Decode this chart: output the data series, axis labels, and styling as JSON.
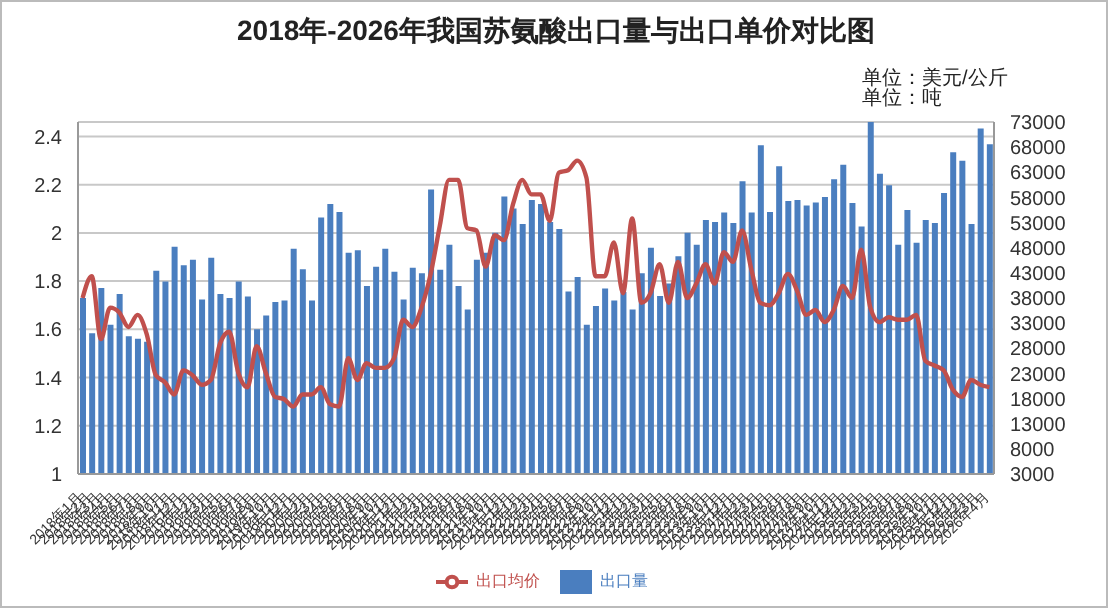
{
  "chart_data": {
    "type": "bar",
    "title": "2018年-2026年我国苏氨酸出口量与出口单价对比图",
    "annotations": [
      "单位：美元/公斤",
      "单位：吨"
    ],
    "categories": [
      "2018年1月",
      "2018年2月",
      "2018年3月",
      "2018年4月",
      "2018年5月",
      "2018年6月",
      "2018年7月",
      "2018年8月",
      "2018年9月",
      "2018年10月",
      "2018年11月",
      "2018年12月",
      "2019年1月",
      "2019年2月",
      "2019年3月",
      "2019年4月",
      "2019年5月",
      "2019年6月",
      "2019年7月",
      "2019年8月",
      "2019年9月",
      "2019年10月",
      "2019年11月",
      "2019年12月",
      "2020年1月",
      "2020年2月",
      "2020年3月",
      "2020年4月",
      "2020年5月",
      "2020年6月",
      "2020年7月",
      "2020年8月",
      "2020年9月",
      "2020年10月",
      "2020年11月",
      "2020年12月",
      "2021年1月",
      "2021年2月",
      "2021年3月",
      "2021年4月",
      "2021年5月",
      "2021年6月",
      "2021年7月",
      "2021年8月",
      "2021年9月",
      "2021年10月",
      "2021年11月",
      "2021年12月",
      "2022年1月",
      "2022年2月",
      "2022年3月",
      "2022年4月",
      "2022年5月",
      "2022年6月",
      "2022年7月",
      "2022年8月",
      "2022年9月",
      "2022年10月",
      "2022年11月",
      "2022年12月",
      "2023年1月",
      "2023年2月",
      "2023年3月",
      "2023年4月",
      "2023年5月",
      "2023年6月",
      "2023年7月",
      "2023年8月",
      "2023年9月",
      "2023年10月",
      "2023年11月",
      "2023年12月",
      "2024年1月",
      "2024年2月",
      "2024年3月",
      "2024年4月",
      "2024年5月",
      "2024年6月",
      "2024年7月",
      "2024年8月",
      "2024年9月",
      "2024年10月",
      "2024年11月",
      "2024年12月",
      "2025年1月",
      "2025年2月",
      "2025年3月",
      "2025年4月",
      "2025年5月",
      "2025年6月",
      "2025年7月",
      "2025年8月",
      "2025年9月",
      "2025年10月",
      "2025年11月",
      "2025年12月",
      "2026年1月",
      "2026年2月",
      "2026年3月",
      "2026年4月"
    ],
    "series": [
      {
        "name": "出口量",
        "axis": "y2",
        "color": "#4a7ebf",
        "values": [
          38000,
          31000,
          40000,
          32700,
          38800,
          30400,
          29900,
          29300,
          43400,
          41300,
          48200,
          44500,
          45600,
          37700,
          46000,
          38800,
          38000,
          41300,
          38300,
          31800,
          34500,
          37200,
          37500,
          47800,
          43700,
          37500,
          54000,
          56700,
          55100,
          47000,
          47500,
          40400,
          44200,
          47800,
          43200,
          37700,
          44000,
          42900,
          59600,
          43600,
          48600,
          40400,
          35700,
          45600,
          47000,
          51000,
          58200,
          55800,
          52700,
          57500,
          56700,
          53100,
          51700,
          39300,
          42200,
          32700,
          36400,
          39900,
          37500,
          39200,
          35700,
          42900,
          48000,
          38400,
          40900,
          46300,
          51000,
          48600,
          53500,
          53100,
          55000,
          52900,
          61200,
          55000,
          68400,
          55100,
          64200,
          57300,
          57500,
          56400,
          57000,
          58100,
          61600,
          64500,
          56900,
          52200,
          73000,
          62700,
          60400,
          48600,
          55500,
          49000,
          53500,
          52900,
          58900,
          67000,
          65300,
          52700,
          71700,
          68600
        ]
      },
      {
        "name": "出口均价",
        "type": "line",
        "color": "#c0504d",
        "values": [
          1.73,
          1.82,
          1.56,
          1.69,
          1.67,
          1.61,
          1.66,
          1.58,
          1.41,
          1.38,
          1.33,
          1.43,
          1.41,
          1.37,
          1.39,
          1.54,
          1.59,
          1.42,
          1.36,
          1.53,
          1.42,
          1.32,
          1.31,
          1.28,
          1.33,
          1.33,
          1.36,
          1.29,
          1.28,
          1.48,
          1.39,
          1.46,
          1.44,
          1.44,
          1.48,
          1.64,
          1.61,
          1.69,
          1.83,
          2.03,
          2.22,
          2.22,
          2.02,
          2.01,
          1.86,
          1.99,
          1.97,
          2.12,
          2.22,
          2.16,
          2.16,
          2.05,
          2.25,
          2.26,
          2.3,
          2.23,
          1.82,
          1.82,
          1.96,
          1.75,
          2.06,
          1.71,
          1.75,
          1.87,
          1.71,
          1.88,
          1.73,
          1.79,
          1.87,
          1.79,
          1.92,
          1.88,
          2.01,
          1.85,
          1.71,
          1.7,
          1.75,
          1.83,
          1.76,
          1.66,
          1.68,
          1.63,
          1.68,
          1.78,
          1.73,
          1.93,
          1.69,
          1.63,
          1.65,
          1.64,
          1.64,
          1.66,
          1.47,
          1.45,
          1.43,
          1.35,
          1.32,
          1.39,
          1.37,
          1.36
        ]
      }
    ],
    "ylim": [
      1,
      2.46
    ],
    "yticks": [
      1,
      1.2,
      1.4,
      1.6,
      1.8,
      2,
      2.2,
      2.4
    ],
    "y2lim": [
      3000,
      73000
    ],
    "y2ticks": [
      3000,
      8000,
      13000,
      18000,
      23000,
      28000,
      33000,
      38000,
      43000,
      48000,
      53000,
      58000,
      63000,
      68000,
      73000
    ],
    "grid": "y",
    "legend": "bottom",
    "marker": "none"
  }
}
